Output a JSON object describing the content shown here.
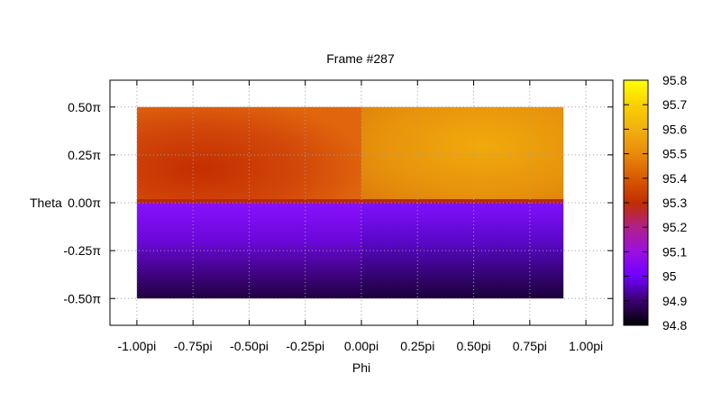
{
  "chart_data": {
    "type": "heatmap",
    "title": "Frame #287",
    "xlabel": "Phi",
    "ylabel": "Theta",
    "xlim": [
      -1.12,
      1.12
    ],
    "ylim": [
      -0.64,
      0.64
    ],
    "data_extent": {
      "x": [
        -1.0,
        0.9
      ],
      "y": [
        -0.5,
        0.5
      ]
    },
    "x_ticks": [
      {
        "value": -1.0,
        "label": "-1.00pi"
      },
      {
        "value": -0.75,
        "label": "-0.75pi"
      },
      {
        "value": -0.5,
        "label": "-0.50pi"
      },
      {
        "value": -0.25,
        "label": "-0.25pi"
      },
      {
        "value": 0.0,
        "label": "0.00pi"
      },
      {
        "value": 0.25,
        "label": "0.25pi"
      },
      {
        "value": 0.5,
        "label": "0.50pi"
      },
      {
        "value": 0.75,
        "label": "0.75pi"
      },
      {
        "value": 1.0,
        "label": "1.00pi"
      }
    ],
    "y_ticks": [
      {
        "value": 0.5,
        "label": "0.50π"
      },
      {
        "value": 0.25,
        "label": "0.25π"
      },
      {
        "value": 0.0,
        "label": "0.00π"
      },
      {
        "value": -0.25,
        "label": "-0.25π"
      },
      {
        "value": -0.5,
        "label": "-0.50π"
      }
    ],
    "grid": true,
    "colorbar": {
      "range": [
        94.8,
        95.8
      ],
      "ticks": [
        95.8,
        95.7,
        95.6,
        95.5,
        95.4,
        95.3,
        95.2,
        95.1,
        95.0,
        94.9,
        94.8
      ],
      "tick_labels": [
        "95.8",
        "95.7",
        "95.6",
        "95.5",
        "95.4",
        "95.3",
        "95.2",
        "95.1",
        "95",
        "94.9",
        "94.8"
      ],
      "placement": "right"
    },
    "regions": [
      {
        "x": [
          -1.0,
          0.0
        ],
        "y": [
          0.0,
          0.5
        ],
        "value_range": [
          95.38,
          95.55
        ]
      },
      {
        "x": [
          0.0,
          0.9
        ],
        "y": [
          0.0,
          0.5
        ],
        "value_range": [
          95.5,
          95.65
        ]
      },
      {
        "x": [
          -1.0,
          0.0
        ],
        "y": [
          -0.5,
          0.0
        ],
        "value_range": [
          94.87,
          95.03
        ]
      },
      {
        "x": [
          0.0,
          0.9
        ],
        "y": [
          -0.5,
          0.0
        ],
        "value_range": [
          94.86,
          95.01
        ]
      }
    ]
  }
}
